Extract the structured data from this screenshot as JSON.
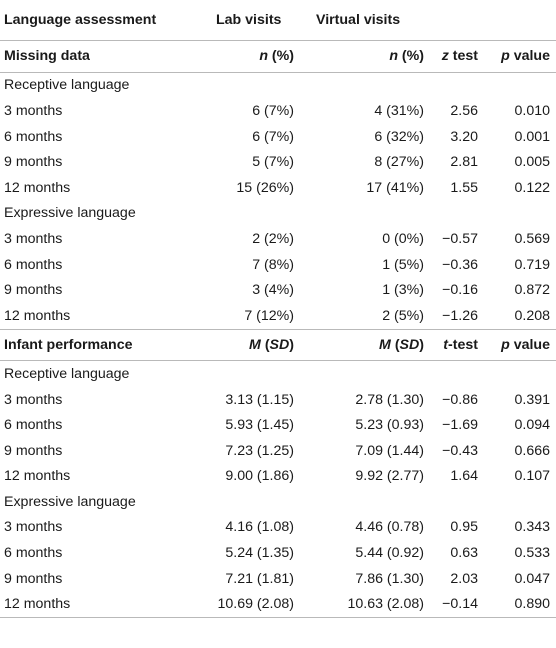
{
  "header": {
    "col0": "Language assessment",
    "col1": "Lab visits",
    "col2": "Virtual visits"
  },
  "sections": [
    {
      "title": "Missing data",
      "col_labels": [
        {
          "ital": "n",
          "rest": " (%)"
        },
        {
          "ital": "n",
          "rest": " (%)"
        },
        {
          "ital": "z",
          "rest": " test"
        },
        {
          "ital": "p",
          "rest": " value"
        }
      ],
      "groups": [
        {
          "name": "Receptive language",
          "rows": [
            [
              "3 months",
              "6 (7%)",
              "4 (31%)",
              "2.56",
              "0.010"
            ],
            [
              "6 months",
              "6 (7%)",
              "6 (32%)",
              "3.20",
              "0.001"
            ],
            [
              "9 months",
              "5 (7%)",
              "8 (27%)",
              "2.81",
              "0.005"
            ],
            [
              "12 months",
              "15 (26%)",
              "17 (41%)",
              "1.55",
              "0.122"
            ]
          ]
        },
        {
          "name": "Expressive language",
          "rows": [
            [
              "3 months",
              "2 (2%)",
              "0 (0%)",
              "−0.57",
              "0.569"
            ],
            [
              "6 months",
              "7 (8%)",
              "1 (5%)",
              "−0.36",
              "0.719"
            ],
            [
              "9 months",
              "3 (4%)",
              "1 (3%)",
              "−0.16",
              "0.872"
            ],
            [
              "12 months",
              "7 (12%)",
              "2 (5%)",
              "−1.26",
              "0.208"
            ]
          ]
        }
      ]
    },
    {
      "title": "Infant performance",
      "col_labels": [
        {
          "ital": "M",
          "rest": " (",
          "ital2": "SD",
          "rest2": ")"
        },
        {
          "ital": "M",
          "rest": " (",
          "ital2": "SD",
          "rest2": ")"
        },
        {
          "ital": "t",
          "rest": "-test"
        },
        {
          "ital": "p",
          "rest": " value"
        }
      ],
      "groups": [
        {
          "name": "Receptive language",
          "rows": [
            [
              "3 months",
              "3.13 (1.15)",
              "2.78 (1.30)",
              "−0.86",
              "0.391"
            ],
            [
              "6 months",
              "5.93 (1.45)",
              "5.23 (0.93)",
              "−1.69",
              "0.094"
            ],
            [
              "9 months",
              "7.23 (1.25)",
              "7.09 (1.44)",
              "−0.43",
              "0.666"
            ],
            [
              "12 months",
              "9.00 (1.86)",
              "9.92 (2.77)",
              "1.64",
              "0.107"
            ]
          ]
        },
        {
          "name": "Expressive language",
          "rows": [
            [
              "3 months",
              "4.16 (1.08)",
              "4.46 (0.78)",
              "0.95",
              "0.343"
            ],
            [
              "6 months",
              "5.24 (1.35)",
              "5.44 (0.92)",
              "0.63",
              "0.533"
            ],
            [
              "9 months",
              "7.21 (1.81)",
              "7.86 (1.30)",
              "2.03",
              "0.047"
            ],
            [
              "12 months",
              "10.69 (2.08)",
              "10.63 (2.08)",
              "−0.14",
              "0.890"
            ]
          ]
        }
      ]
    }
  ]
}
